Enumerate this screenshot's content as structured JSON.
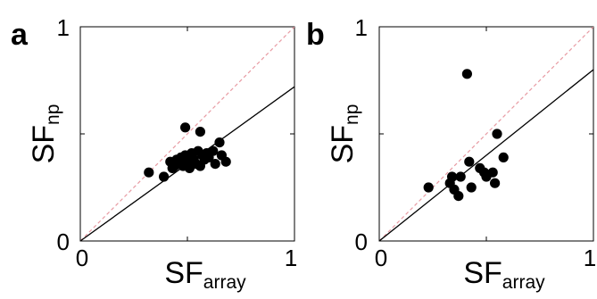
{
  "chart_data": [
    {
      "type": "scatter",
      "panel_label": "a",
      "xlabel_main": "SF",
      "xlabel_sub": "array",
      "ylabel_main": "SF",
      "ylabel_sub": "np",
      "xlim": [
        0,
        1
      ],
      "ylim": [
        0,
        1
      ],
      "x_ticks": [
        "0",
        "1"
      ],
      "y_ticks": [
        "0",
        "1"
      ],
      "grid": false,
      "identity_line": {
        "style": "dashed",
        "color": "#e89aa2"
      },
      "fit_line": {
        "slope": 0.72,
        "intercept": 0.0,
        "color": "#000000"
      },
      "points": [
        {
          "x": 0.32,
          "y": 0.32
        },
        {
          "x": 0.39,
          "y": 0.3
        },
        {
          "x": 0.42,
          "y": 0.37
        },
        {
          "x": 0.43,
          "y": 0.34
        },
        {
          "x": 0.44,
          "y": 0.35
        },
        {
          "x": 0.45,
          "y": 0.38
        },
        {
          "x": 0.46,
          "y": 0.36
        },
        {
          "x": 0.47,
          "y": 0.39
        },
        {
          "x": 0.48,
          "y": 0.35
        },
        {
          "x": 0.49,
          "y": 0.4
        },
        {
          "x": 0.49,
          "y": 0.53
        },
        {
          "x": 0.5,
          "y": 0.37
        },
        {
          "x": 0.51,
          "y": 0.34
        },
        {
          "x": 0.52,
          "y": 0.41
        },
        {
          "x": 0.53,
          "y": 0.38
        },
        {
          "x": 0.54,
          "y": 0.36
        },
        {
          "x": 0.55,
          "y": 0.42
        },
        {
          "x": 0.56,
          "y": 0.51
        },
        {
          "x": 0.56,
          "y": 0.35
        },
        {
          "x": 0.57,
          "y": 0.4
        },
        {
          "x": 0.58,
          "y": 0.38
        },
        {
          "x": 0.59,
          "y": 0.41
        },
        {
          "x": 0.6,
          "y": 0.39
        },
        {
          "x": 0.62,
          "y": 0.42
        },
        {
          "x": 0.63,
          "y": 0.36
        },
        {
          "x": 0.65,
          "y": 0.46
        },
        {
          "x": 0.66,
          "y": 0.4
        },
        {
          "x": 0.68,
          "y": 0.37
        }
      ]
    },
    {
      "type": "scatter",
      "panel_label": "b",
      "xlabel_main": "SF",
      "xlabel_sub": "array",
      "ylabel_main": "SF",
      "ylabel_sub": "np",
      "xlim": [
        0,
        1
      ],
      "ylim": [
        0,
        1
      ],
      "x_ticks": [
        "0",
        "1"
      ],
      "y_ticks": [
        "0",
        "1"
      ],
      "grid": false,
      "identity_line": {
        "style": "dashed",
        "color": "#e89aa2"
      },
      "fit_line": {
        "slope": 0.8,
        "intercept": 0.0,
        "color": "#000000"
      },
      "points": [
        {
          "x": 0.23,
          "y": 0.25
        },
        {
          "x": 0.33,
          "y": 0.27
        },
        {
          "x": 0.34,
          "y": 0.3
        },
        {
          "x": 0.35,
          "y": 0.24
        },
        {
          "x": 0.37,
          "y": 0.21
        },
        {
          "x": 0.38,
          "y": 0.3
        },
        {
          "x": 0.41,
          "y": 0.78
        },
        {
          "x": 0.42,
          "y": 0.37
        },
        {
          "x": 0.43,
          "y": 0.25
        },
        {
          "x": 0.47,
          "y": 0.34
        },
        {
          "x": 0.49,
          "y": 0.32
        },
        {
          "x": 0.5,
          "y": 0.3
        },
        {
          "x": 0.53,
          "y": 0.32
        },
        {
          "x": 0.54,
          "y": 0.27
        },
        {
          "x": 0.55,
          "y": 0.5
        },
        {
          "x": 0.58,
          "y": 0.39
        }
      ]
    }
  ]
}
